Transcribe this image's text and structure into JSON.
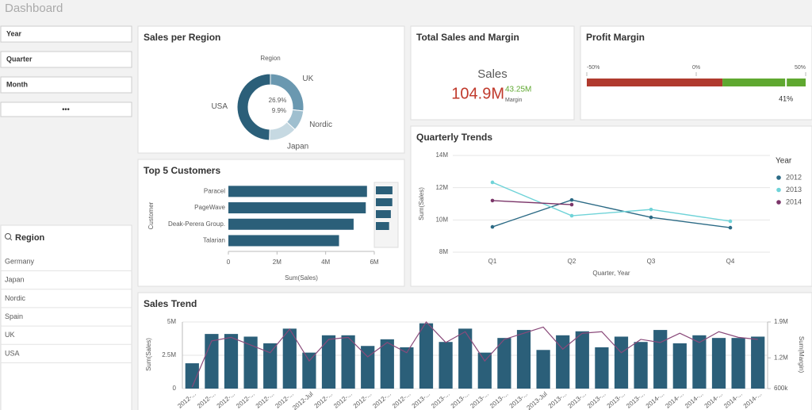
{
  "header": {
    "title": "Dashboard"
  },
  "filters": {
    "items": [
      "Year",
      "Quarter",
      "Month"
    ],
    "more": "•••"
  },
  "region_list": {
    "title": "Region",
    "items": [
      "Germany",
      "Japan",
      "Nordic",
      "Spain",
      "UK",
      "USA"
    ]
  },
  "kpi": {
    "title": "Total Sales and Margin",
    "label": "Sales",
    "value": "104.9M",
    "secondary_value": "43.25M",
    "secondary_label": "Margin"
  },
  "chart_data": [
    {
      "type": "pie",
      "title": "Sales per Region",
      "legend_title": "Region",
      "donut": true,
      "categories": [
        "UK",
        "Nordic",
        "Japan",
        "USA"
      ],
      "values": [
        26.9,
        9.9,
        13.7,
        49.5
      ],
      "value_labels": [
        "26.9%",
        "9.9%",
        null,
        null
      ],
      "colors": [
        "#6a98b0",
        "#9fbfcf",
        "#c6d9e2",
        "#2b5f79"
      ]
    },
    {
      "type": "bar",
      "orientation": "horizontal",
      "title": "Top 5 Customers",
      "x_label": "Sum(Sales)",
      "y_label": "Customer",
      "categories": [
        "Paracel",
        "PageWave",
        "Deak-Perera Group.",
        "Talarian"
      ],
      "values": [
        5700000,
        5650000,
        5150000,
        4550000
      ],
      "color": "#2b5f79",
      "xlim": [
        0,
        6000000
      ],
      "xticks": [
        0,
        {
          "value": 2000000,
          "label": "2M"
        },
        {
          "value": 4000000,
          "label": "4M"
        },
        {
          "value": 6000000,
          "label": "6M"
        }
      ]
    },
    {
      "type": "gauge",
      "title": "Profit Margin",
      "value": 41,
      "value_label": "41%",
      "xlim": [
        -50,
        50
      ],
      "xticks": [
        {
          "value": -50,
          "label": "-50%"
        },
        {
          "value": 0,
          "label": "0%"
        },
        {
          "value": 50,
          "label": "50%"
        }
      ],
      "bands": [
        {
          "from": -50,
          "to": 12,
          "color": "#b03a2e"
        },
        {
          "from": 12,
          "to": 50,
          "color": "#5fa830"
        }
      ]
    },
    {
      "type": "line",
      "title": "Quarterly Trends",
      "x_label": "Quarter, Year",
      "y_label": "Sum(Sales)",
      "legend_title": "Year",
      "categories": [
        "Q1",
        "Q2",
        "Q3",
        "Q4"
      ],
      "series": [
        {
          "name": "2012",
          "color": "#2b6a85",
          "values": [
            9570000,
            11240000,
            10160000,
            9520000
          ]
        },
        {
          "name": "2013",
          "color": "#6fd3d8",
          "values": [
            12330000,
            10260000,
            10650000,
            9920000
          ]
        },
        {
          "name": "2014",
          "color": "#7b3569",
          "values": [
            11200000,
            10950000,
            null,
            null
          ]
        }
      ],
      "ylim": [
        8000000,
        14000000
      ],
      "yticks": [
        {
          "value": 8000000,
          "label": "8M"
        },
        {
          "value": 10000000,
          "label": "10M"
        },
        {
          "value": 12000000,
          "label": "12M"
        },
        {
          "value": 14000000,
          "label": "14M"
        }
      ],
      "grid": true
    },
    {
      "type": "combo",
      "title": "Sales Trend",
      "y_label": "Sum(Sales)",
      "y2_label": "Sum(Margin)",
      "categories": [
        "2012-...",
        "2012-...",
        "2012-...",
        "2012-...",
        "2012-...",
        "2012-...",
        "2012-Jul",
        "2012-...",
        "2012-...",
        "2012-...",
        "2012-...",
        "2012-...",
        "2013-...",
        "2013-...",
        "2013-...",
        "2013-...",
        "2013-...",
        "2013-...",
        "2013-Jul",
        "2013-...",
        "2013-...",
        "2013-...",
        "2013-...",
        "2013-...",
        "2014-...",
        "2014-...",
        "2014-...",
        "2014-...",
        "2014-...",
        "2014-..."
      ],
      "series": [
        {
          "type": "bar",
          "color": "#2b5f79",
          "values": [
            1900000,
            4100000,
            4100000,
            3900000,
            3400000,
            4500000,
            2700000,
            4000000,
            4000000,
            3200000,
            3700000,
            3100000,
            4900000,
            3500000,
            4500000,
            2700000,
            3800000,
            4400000,
            2900000,
            4000000,
            4300000,
            3100000,
            3900000,
            3500000,
            4400000,
            3400000,
            4000000,
            3800000,
            3800000,
            3900000
          ]
        },
        {
          "type": "line",
          "axis": "y2",
          "color": "#8a4a7a",
          "values": [
            630000,
            1530000,
            1600000,
            1450000,
            1300000,
            1760000,
            1140000,
            1560000,
            1600000,
            1220000,
            1500000,
            1300000,
            1900000,
            1500000,
            1710000,
            1140000,
            1560000,
            1680000,
            1800000,
            1370000,
            1680000,
            1710000,
            1300000,
            1560000,
            1500000,
            1680000,
            1500000,
            1710000,
            1600000,
            1560000
          ]
        }
      ],
      "ylim": [
        0,
        5000000
      ],
      "yticks": [
        0,
        {
          "value": 2500000,
          "label": "2.5M"
        },
        {
          "value": 5000000,
          "label": "5M"
        }
      ],
      "y2lim": [
        600000,
        1900000
      ],
      "y2ticks": [
        {
          "value": 600000,
          "label": "600k"
        },
        {
          "value": 1200000,
          "label": "1.2M"
        },
        {
          "value": 1900000,
          "label": "1.9M"
        }
      ],
      "grid": true
    }
  ]
}
